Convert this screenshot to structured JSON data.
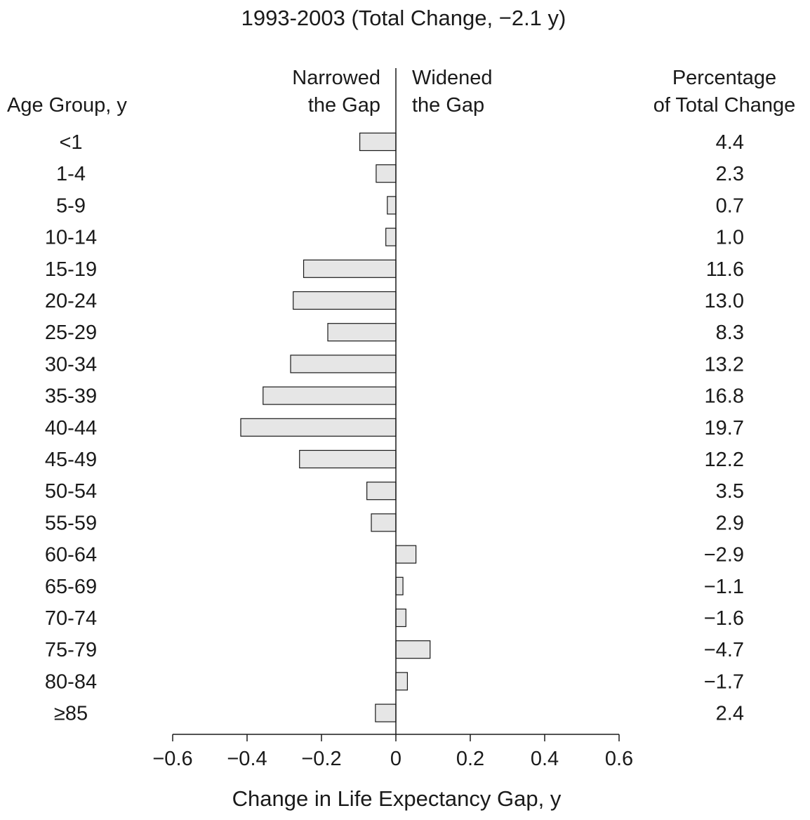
{
  "chart_data": {
    "type": "bar",
    "orientation": "horizontal",
    "title": "1993-2003 (Total Change, −2.1 y)",
    "xlabel": "Change in Life Expectancy Gap, y",
    "ylabel": "Age Group, y",
    "left_side_label": [
      "Narrowed",
      "the Gap"
    ],
    "right_side_label": [
      "Widened",
      "the Gap"
    ],
    "right_column_header": [
      "Percentage",
      "of Total Change"
    ],
    "xlim": [
      -0.6,
      0.6
    ],
    "xticks": [
      -0.6,
      -0.4,
      -0.2,
      0,
      0.2,
      0.4,
      0.6
    ],
    "xtick_labels": [
      "−0.6",
      "−0.4",
      "−0.2",
      "0",
      "0.2",
      "0.4",
      "0.6"
    ],
    "grid": false,
    "bar_fill": "#e6e6e6",
    "bar_stroke": "#1a1a1a",
    "categories": [
      "<1",
      "1-4",
      "5-9",
      "10-14",
      "15-19",
      "20-24",
      "25-29",
      "30-34",
      "35-39",
      "40-44",
      "45-49",
      "50-54",
      "55-59",
      "60-64",
      "65-69",
      "70-74",
      "75-79",
      "80-84",
      "≥85"
    ],
    "values": [
      -0.097,
      -0.053,
      -0.023,
      -0.027,
      -0.248,
      -0.276,
      -0.183,
      -0.283,
      -0.357,
      -0.417,
      -0.259,
      -0.078,
      -0.066,
      0.054,
      0.019,
      0.027,
      0.092,
      0.031,
      -0.055
    ],
    "percentages": [
      "4.4",
      "2.3",
      "0.7",
      "1.0",
      "11.6",
      "13.0",
      "8.3",
      "13.2",
      "16.8",
      "19.7",
      "12.2",
      "3.5",
      "2.9",
      "−2.9",
      "−1.1",
      "−1.6",
      "−4.7",
      "−1.7",
      "2.4"
    ]
  }
}
